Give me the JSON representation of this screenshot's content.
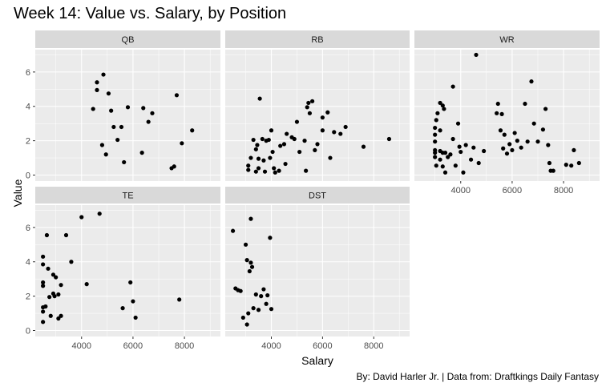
{
  "title": "Week 14: Value vs. Salary, by Position",
  "caption": "By: David Harler Jr. | Data from: Draftkings Daily Fantasy",
  "colors": {
    "panel_bg": "#EBEBEB",
    "strip_bg": "#D9D9D9",
    "grid": "#FFFFFF",
    "point": "#000000",
    "tick_text": "#4D4D4D"
  },
  "chart_data": {
    "type": "scatter",
    "facet_by": "Position",
    "xlabel": "Salary",
    "ylabel": "Value",
    "xlim": [
      2200,
      9400
    ],
    "ylim": [
      -0.35,
      7.3
    ],
    "x_ticks": [
      4000,
      6000,
      8000
    ],
    "y_ticks": [
      0,
      2,
      4,
      6
    ],
    "grid": true,
    "panels": [
      {
        "name": "QB",
        "points": [
          [
            4450,
            3.85
          ],
          [
            4600,
            5.4
          ],
          [
            4600,
            4.95
          ],
          [
            4800,
            1.75
          ],
          [
            4850,
            5.85
          ],
          [
            4950,
            1.2
          ],
          [
            5050,
            4.75
          ],
          [
            5150,
            3.75
          ],
          [
            5250,
            2.8
          ],
          [
            5400,
            2.05
          ],
          [
            5550,
            2.8
          ],
          [
            5650,
            0.75
          ],
          [
            5800,
            3.95
          ],
          [
            6350,
            1.3
          ],
          [
            6400,
            3.9
          ],
          [
            6600,
            3.1
          ],
          [
            6750,
            3.6
          ],
          [
            7500,
            0.4
          ],
          [
            7600,
            0.5
          ],
          [
            7700,
            4.65
          ],
          [
            7900,
            1.85
          ],
          [
            8300,
            2.6
          ]
        ]
      },
      {
        "name": "RB",
        "points": [
          [
            3100,
            0.3
          ],
          [
            3100,
            0.55
          ],
          [
            3200,
            1.0
          ],
          [
            3300,
            2.05
          ],
          [
            3400,
            1.5
          ],
          [
            3400,
            0.2
          ],
          [
            3450,
            1.75
          ],
          [
            3500,
            0.95
          ],
          [
            3500,
            0.4
          ],
          [
            3550,
            4.45
          ],
          [
            3650,
            2.1
          ],
          [
            3700,
            0.85
          ],
          [
            3750,
            0.2
          ],
          [
            3800,
            2.0
          ],
          [
            3900,
            2.05
          ],
          [
            3950,
            1.0
          ],
          [
            4000,
            2.6
          ],
          [
            4050,
            1.35
          ],
          [
            4100,
            0.4
          ],
          [
            4150,
            0.15
          ],
          [
            4300,
            0.25
          ],
          [
            4350,
            1.7
          ],
          [
            4500,
            1.8
          ],
          [
            4550,
            0.65
          ],
          [
            4600,
            2.4
          ],
          [
            4800,
            2.2
          ],
          [
            4900,
            2.1
          ],
          [
            5000,
            3.1
          ],
          [
            5100,
            1.35
          ],
          [
            5300,
            2.0
          ],
          [
            5350,
            0.25
          ],
          [
            5400,
            3.95
          ],
          [
            5450,
            4.2
          ],
          [
            5500,
            3.6
          ],
          [
            5600,
            4.3
          ],
          [
            5700,
            1.45
          ],
          [
            5800,
            1.8
          ],
          [
            6000,
            3.35
          ],
          [
            6000,
            2.6
          ],
          [
            6200,
            3.65
          ],
          [
            6300,
            1.0
          ],
          [
            6450,
            2.5
          ],
          [
            6700,
            2.4
          ],
          [
            6900,
            2.8
          ],
          [
            7600,
            1.65
          ],
          [
            8600,
            2.1
          ]
        ]
      },
      {
        "name": "WR",
        "points": [
          [
            3000,
            2.75
          ],
          [
            3000,
            2.35
          ],
          [
            3000,
            1.95
          ],
          [
            3000,
            1.45
          ],
          [
            3000,
            1.3
          ],
          [
            3000,
            1.05
          ],
          [
            3050,
            3.2
          ],
          [
            3050,
            0.55
          ],
          [
            3100,
            3.6
          ],
          [
            3200,
            4.2
          ],
          [
            3200,
            2.6
          ],
          [
            3200,
            1.4
          ],
          [
            3200,
            0.9
          ],
          [
            3300,
            4.05
          ],
          [
            3300,
            1.3
          ],
          [
            3300,
            0.5
          ],
          [
            3350,
            3.85
          ],
          [
            3400,
            1.3
          ],
          [
            3400,
            0.15
          ],
          [
            3500,
            1.05
          ],
          [
            3600,
            1.2
          ],
          [
            3700,
            5.15
          ],
          [
            3700,
            2.1
          ],
          [
            3800,
            0.55
          ],
          [
            3900,
            3.0
          ],
          [
            3950,
            1.65
          ],
          [
            4000,
            1.35
          ],
          [
            4100,
            0.15
          ],
          [
            4200,
            1.75
          ],
          [
            4400,
            0.9
          ],
          [
            4500,
            1.6
          ],
          [
            4600,
            7.0
          ],
          [
            4700,
            0.7
          ],
          [
            4900,
            1.4
          ],
          [
            5400,
            3.6
          ],
          [
            5450,
            4.15
          ],
          [
            5550,
            2.6
          ],
          [
            5600,
            3.55
          ],
          [
            5650,
            1.55
          ],
          [
            5700,
            2.35
          ],
          [
            5800,
            1.25
          ],
          [
            5900,
            1.8
          ],
          [
            6000,
            1.45
          ],
          [
            6100,
            2.45
          ],
          [
            6200,
            2.0
          ],
          [
            6350,
            1.6
          ],
          [
            6500,
            4.15
          ],
          [
            6600,
            1.95
          ],
          [
            6750,
            5.45
          ],
          [
            6850,
            3.0
          ],
          [
            7000,
            1.95
          ],
          [
            7200,
            2.65
          ],
          [
            7300,
            3.85
          ],
          [
            7400,
            1.75
          ],
          [
            7450,
            0.7
          ],
          [
            7500,
            0.25
          ],
          [
            7600,
            0.25
          ],
          [
            8100,
            0.6
          ],
          [
            8300,
            0.55
          ],
          [
            8400,
            1.45
          ],
          [
            8600,
            0.7
          ]
        ]
      },
      {
        "name": "TE",
        "points": [
          [
            2500,
            4.3
          ],
          [
            2500,
            3.85
          ],
          [
            2500,
            2.8
          ],
          [
            2500,
            2.6
          ],
          [
            2500,
            1.35
          ],
          [
            2500,
            1.1
          ],
          [
            2500,
            0.5
          ],
          [
            2600,
            1.4
          ],
          [
            2650,
            5.55
          ],
          [
            2700,
            3.6
          ],
          [
            2750,
            1.95
          ],
          [
            2800,
            0.85
          ],
          [
            2900,
            3.25
          ],
          [
            2900,
            2.15
          ],
          [
            2950,
            2.0
          ],
          [
            3000,
            3.1
          ],
          [
            3100,
            2.1
          ],
          [
            3100,
            0.7
          ],
          [
            3200,
            0.85
          ],
          [
            3200,
            2.65
          ],
          [
            3400,
            5.55
          ],
          [
            3600,
            4.0
          ],
          [
            4000,
            6.6
          ],
          [
            4200,
            2.7
          ],
          [
            4700,
            6.8
          ],
          [
            5600,
            1.3
          ],
          [
            5900,
            2.8
          ],
          [
            6000,
            1.7
          ],
          [
            6100,
            0.75
          ],
          [
            7800,
            1.8
          ]
        ]
      },
      {
        "name": "DST",
        "points": [
          [
            2500,
            5.8
          ],
          [
            2600,
            2.45
          ],
          [
            2700,
            2.35
          ],
          [
            2800,
            2.3
          ],
          [
            2900,
            0.75
          ],
          [
            3000,
            5.0
          ],
          [
            3050,
            0.35
          ],
          [
            3050,
            4.1
          ],
          [
            3100,
            1.0
          ],
          [
            3150,
            3.45
          ],
          [
            3200,
            3.95
          ],
          [
            3200,
            6.5
          ],
          [
            3250,
            3.7
          ],
          [
            3300,
            1.3
          ],
          [
            3400,
            2.1
          ],
          [
            3500,
            1.2
          ],
          [
            3600,
            2.0
          ],
          [
            3700,
            2.4
          ],
          [
            3800,
            1.55
          ],
          [
            3850,
            2.05
          ],
          [
            3950,
            5.4
          ],
          [
            4000,
            1.25
          ]
        ]
      }
    ]
  }
}
